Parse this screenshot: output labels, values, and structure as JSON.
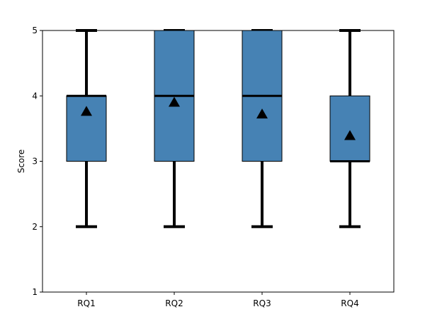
{
  "chart_data": {
    "type": "boxplot",
    "title": "",
    "xlabel": "",
    "ylabel": "Score",
    "ylim": [
      1,
      5
    ],
    "yticks": [
      1,
      2,
      3,
      4,
      5
    ],
    "grid": false,
    "categories": [
      "RQ1",
      "RQ2",
      "RQ3",
      "RQ4"
    ],
    "boxes": [
      {
        "category": "RQ1",
        "whisker_low": 2,
        "q1": 3,
        "median": 4,
        "q3": 4,
        "whisker_high": 5,
        "mean": 3.76
      },
      {
        "category": "RQ2",
        "whisker_low": 2,
        "q1": 3,
        "median": 4,
        "q3": 5,
        "whisker_high": 5,
        "mean": 3.9
      },
      {
        "category": "RQ3",
        "whisker_low": 2,
        "q1": 3,
        "median": 4,
        "q3": 5,
        "whisker_high": 5,
        "mean": 3.72
      },
      {
        "category": "RQ4",
        "whisker_low": 2,
        "q1": 3,
        "median": 3,
        "q3": 4,
        "whisker_high": 5,
        "mean": 3.39
      }
    ],
    "colors": {
      "box_fill": "#4682b4",
      "box_edge": "#000000",
      "median": "#000000",
      "whisker": "#000000",
      "mean_marker": "#000000"
    }
  }
}
